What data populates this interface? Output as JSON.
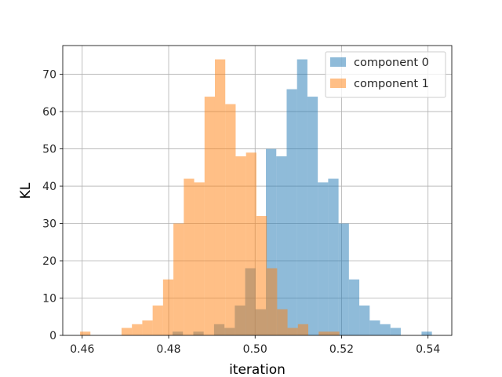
{
  "chart_data": {
    "type": "bar",
    "title": "",
    "xlabel": "iteration",
    "ylabel": "KL",
    "xlim": [
      0.4555,
      0.5455
    ],
    "ylim": [
      0,
      77.7
    ],
    "grid": true,
    "legend_position": "top-right",
    "x_ticks": [
      {
        "value": 0.46,
        "label": "0.46"
      },
      {
        "value": 0.48,
        "label": "0.48"
      },
      {
        "value": 0.5,
        "label": "0.50"
      },
      {
        "value": 0.52,
        "label": "0.52"
      },
      {
        "value": 0.54,
        "label": "0.54"
      }
    ],
    "y_ticks": [
      {
        "value": 0,
        "label": "0"
      },
      {
        "value": 10,
        "label": "10"
      },
      {
        "value": 20,
        "label": "20"
      },
      {
        "value": 30,
        "label": "30"
      },
      {
        "value": 40,
        "label": "40"
      },
      {
        "value": 50,
        "label": "50"
      },
      {
        "value": 60,
        "label": "60"
      },
      {
        "value": 70,
        "label": "70"
      }
    ],
    "series": [
      {
        "name": "component 0",
        "color": "#1f77b4",
        "alpha": 0.5,
        "bin_start": 0.4809,
        "bin_width": 0.0024,
        "counts": [
          1,
          0,
          1,
          0,
          3,
          2,
          8,
          18,
          7,
          50,
          48,
          66,
          74,
          64,
          41,
          42,
          30,
          15,
          8,
          4,
          3,
          2,
          0,
          0,
          1
        ]
      },
      {
        "name": "component 1",
        "color": "#ff7f0e",
        "alpha": 0.5,
        "bin_start": 0.4595,
        "bin_width": 0.0024,
        "counts": [
          1,
          0,
          0,
          0,
          2,
          3,
          4,
          8,
          15,
          30,
          42,
          41,
          64,
          74,
          62,
          48,
          49,
          32,
          18,
          7,
          2,
          3,
          0,
          1,
          1
        ]
      }
    ]
  }
}
